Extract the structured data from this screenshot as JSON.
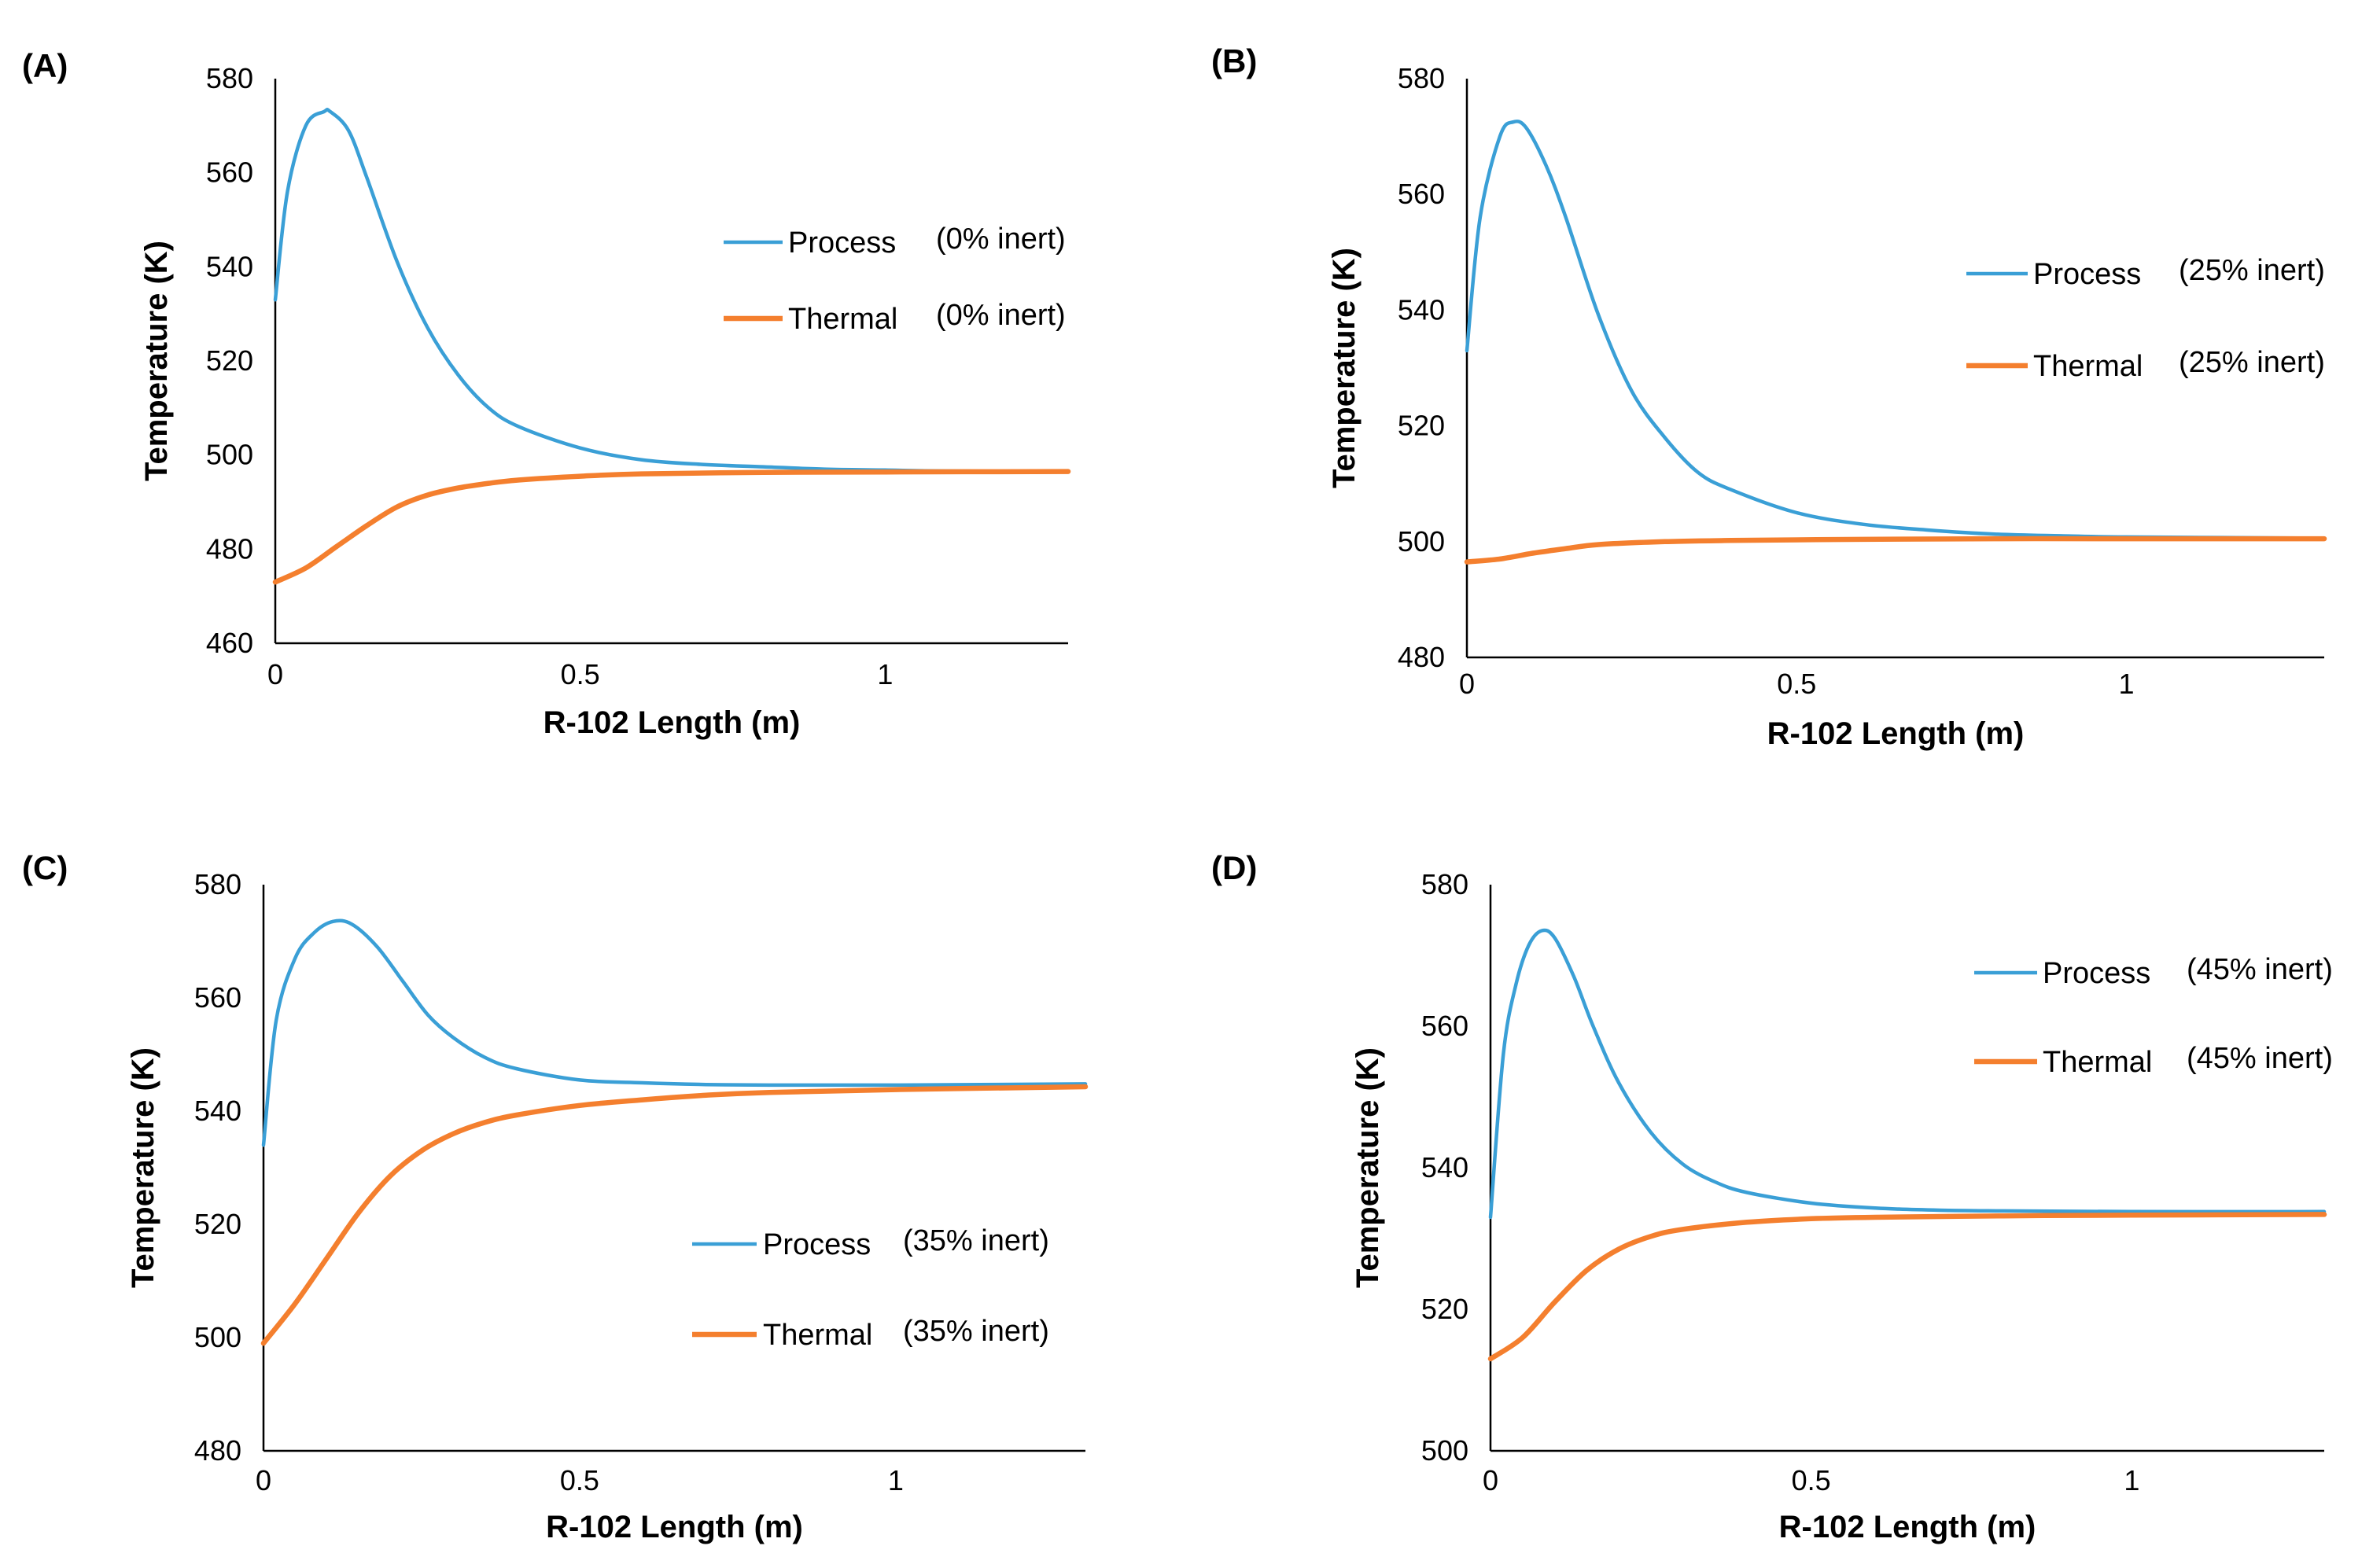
{
  "colors": {
    "process": "#3a9fd6",
    "thermal": "#f47f2e",
    "axis": "#000000"
  },
  "chart_data": [
    {
      "type": "line",
      "panel_label": "(A)",
      "xlabel": "R-102 Length (m)",
      "ylabel": "Temperature (K)",
      "xlim": [
        0,
        1.3
      ],
      "ylim": [
        460,
        580
      ],
      "xticks": [
        "0",
        "0.5",
        "1"
      ],
      "xtick_values": [
        0,
        0.5,
        1
      ],
      "yticks": [
        "460",
        "480",
        "500",
        "520",
        "540",
        "560",
        "580"
      ],
      "ytick_values": [
        460,
        480,
        500,
        520,
        540,
        560,
        580
      ],
      "legend_position": "right-upper",
      "series": [
        {
          "name": "Process",
          "legend_note": "(0% inert)",
          "color": "#3a9fd6",
          "x": [
            0,
            0.02,
            0.05,
            0.08,
            0.09,
            0.12,
            0.15,
            0.2,
            0.25,
            0.3,
            0.35,
            0.4,
            0.5,
            0.6,
            0.7,
            0.8,
            0.9,
            1.0,
            1.1,
            1.3
          ],
          "y": [
            533,
            556,
            570,
            573,
            573,
            569,
            559,
            541,
            527,
            517,
            510,
            506,
            501.5,
            499,
            498,
            497.5,
            497,
            496.8,
            496.6,
            496.5
          ]
        },
        {
          "name": "Thermal",
          "legend_note": "(0% inert)",
          "color": "#f47f2e",
          "x": [
            0,
            0.05,
            0.1,
            0.15,
            0.2,
            0.25,
            0.3,
            0.35,
            0.4,
            0.5,
            0.6,
            0.8,
            1.0,
            1.3
          ],
          "y": [
            473,
            476,
            480.5,
            485,
            489,
            491.5,
            493,
            494,
            494.7,
            495.5,
            496,
            496.3,
            496.4,
            496.5
          ]
        }
      ]
    },
    {
      "type": "line",
      "panel_label": "(B)",
      "xlabel": "R-102 Length (m)",
      "ylabel": "Temperature (K)",
      "xlim": [
        0,
        1.3
      ],
      "ylim": [
        480,
        580
      ],
      "xticks": [
        "0",
        "0.5",
        "1"
      ],
      "xtick_values": [
        0,
        0.5,
        1
      ],
      "yticks": [
        "480",
        "500",
        "520",
        "540",
        "560",
        "580"
      ],
      "ytick_values": [
        480,
        500,
        520,
        540,
        560,
        580
      ],
      "legend_position": "right-upper",
      "series": [
        {
          "name": "Process",
          "legend_note": "(25% inert)",
          "color": "#3a9fd6",
          "x": [
            0,
            0.02,
            0.05,
            0.07,
            0.09,
            0.12,
            0.15,
            0.2,
            0.25,
            0.3,
            0.35,
            0.4,
            0.5,
            0.6,
            0.7,
            0.8,
            0.9,
            1.0,
            1.3
          ],
          "y": [
            533,
            556,
            570,
            572.5,
            571.5,
            565,
            556,
            539,
            526,
            518,
            512,
            509,
            505,
            503,
            502,
            501.3,
            501,
            500.8,
            500.6
          ]
        },
        {
          "name": "Thermal",
          "legend_note": "(25% inert)",
          "color": "#f47f2e",
          "x": [
            0,
            0.05,
            0.1,
            0.15,
            0.2,
            0.3,
            0.4,
            0.6,
            0.8,
            1.0,
            1.3
          ],
          "y": [
            496.5,
            497,
            498,
            498.8,
            499.5,
            500,
            500.2,
            500.4,
            500.5,
            500.5,
            500.5
          ]
        }
      ]
    },
    {
      "type": "line",
      "panel_label": "(C)",
      "xlabel": "R-102 Length (m)",
      "ylabel": "Temperature (K)",
      "xlim": [
        0,
        1.3
      ],
      "ylim": [
        480,
        580
      ],
      "xticks": [
        "0",
        "0.5",
        "1"
      ],
      "xtick_values": [
        0,
        0.5,
        1
      ],
      "yticks": [
        "480",
        "500",
        "520",
        "540",
        "560",
        "580"
      ],
      "ytick_values": [
        480,
        500,
        520,
        540,
        560,
        580
      ],
      "legend_position": "right-lower",
      "series": [
        {
          "name": "Process",
          "legend_note": "(35% inert)",
          "color": "#3a9fd6",
          "x": [
            0,
            0.02,
            0.05,
            0.08,
            0.11,
            0.14,
            0.18,
            0.22,
            0.26,
            0.3,
            0.35,
            0.4,
            0.5,
            0.6,
            0.7,
            0.8,
            1.0,
            1.3
          ],
          "y": [
            534,
            556,
            567,
            571.5,
            573.5,
            573,
            569,
            563,
            557,
            553,
            549.5,
            547.5,
            545.5,
            545,
            544.7,
            544.6,
            544.6,
            544.8
          ]
        },
        {
          "name": "Thermal",
          "legend_note": "(35% inert)",
          "color": "#f47f2e",
          "x": [
            0,
            0.05,
            0.1,
            0.15,
            0.2,
            0.25,
            0.3,
            0.35,
            0.4,
            0.5,
            0.6,
            0.7,
            0.8,
            1.0,
            1.3
          ],
          "y": [
            499,
            506,
            514,
            522,
            528.5,
            533,
            536,
            538,
            539.3,
            541,
            542,
            542.8,
            543.3,
            543.8,
            544.3
          ]
        }
      ]
    },
    {
      "type": "line",
      "panel_label": "(D)",
      "xlabel": "R-102 Length (m)",
      "ylabel": "Temperature (K)",
      "xlim": [
        0,
        1.3
      ],
      "ylim": [
        500,
        580
      ],
      "xticks": [
        "0",
        "0.5",
        "1"
      ],
      "xtick_values": [
        0,
        0.5,
        1
      ],
      "yticks": [
        "500",
        "520",
        "540",
        "560",
        "580"
      ],
      "ytick_values": [
        500,
        520,
        540,
        560,
        580
      ],
      "legend_position": "right-upper",
      "series": [
        {
          "name": "Process",
          "legend_note": "(45% inert)",
          "color": "#3a9fd6",
          "x": [
            0,
            0.02,
            0.04,
            0.06,
            0.08,
            0.1,
            0.13,
            0.16,
            0.2,
            0.25,
            0.3,
            0.35,
            0.4,
            0.5,
            0.6,
            0.7,
            0.8,
            1.0,
            1.3
          ],
          "y": [
            533,
            556,
            566,
            571.5,
            573.5,
            572.5,
            567,
            560,
            552,
            545,
            540.5,
            538,
            536.5,
            535,
            534.3,
            534,
            533.9,
            533.8,
            533.8
          ]
        },
        {
          "name": "Thermal",
          "legend_note": "(45% inert)",
          "color": "#f47f2e",
          "x": [
            0,
            0.05,
            0.1,
            0.15,
            0.2,
            0.25,
            0.3,
            0.4,
            0.5,
            0.6,
            0.8,
            1.0,
            1.3
          ],
          "y": [
            513,
            516,
            521,
            525.5,
            528.5,
            530.3,
            531.3,
            532.3,
            532.8,
            533,
            533.2,
            533.3,
            533.4
          ]
        }
      ]
    }
  ]
}
